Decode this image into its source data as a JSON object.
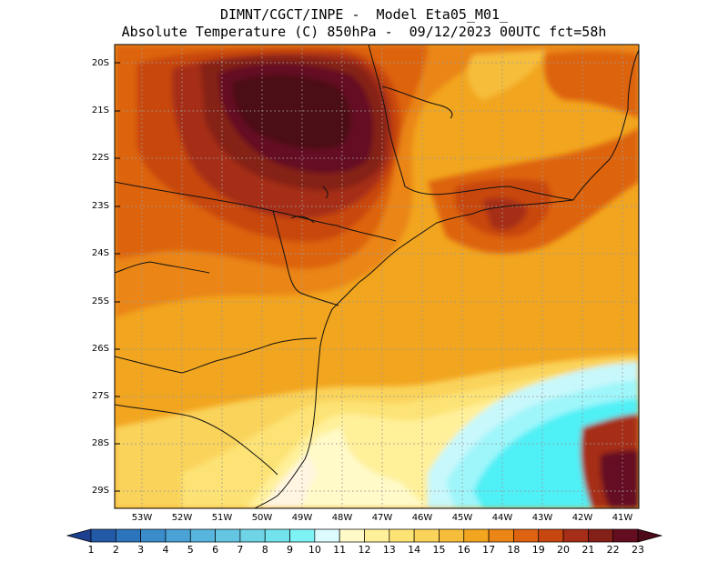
{
  "title": {
    "line1": "DIMNT/CGCT/INPE -  Model Eta05_M01_",
    "line2": "Absolute Temperature (C) 850hPa -  09/12/2023 00UTC fct=58h"
  },
  "map": {
    "lat_labels": [
      "20S",
      "21S",
      "22S",
      "23S",
      "24S",
      "25S",
      "26S",
      "27S",
      "28S",
      "29S"
    ],
    "lon_labels": [
      "53W",
      "52W",
      "51W",
      "50W",
      "49W",
      "48W",
      "47W",
      "46W",
      "45W",
      "44W",
      "43W",
      "42W",
      "41W"
    ],
    "lat_range": [
      19.7,
      29.4
    ],
    "lon_range": [
      53.8,
      40.7
    ],
    "gridlines": "dotted"
  },
  "colorbar": {
    "labels": [
      "1",
      "2",
      "3",
      "4",
      "5",
      "6",
      "7",
      "8",
      "9",
      "10",
      "11",
      "12",
      "13",
      "14",
      "15",
      "16",
      "17",
      "18",
      "19",
      "20",
      "21",
      "22",
      "23"
    ],
    "colors": [
      "#1c3f8f",
      "#235aa8",
      "#2c74bc",
      "#3a8ccb",
      "#4aa2d6",
      "#58b5dd",
      "#64c6e2",
      "#6ed4e6",
      "#72e3ec",
      "#7ff2f6",
      "#dcfbff",
      "#fffac8",
      "#fff09a",
      "#fde374",
      "#fad35a",
      "#f6bd3b",
      "#f2a51f",
      "#ea8516",
      "#dd6310",
      "#c84710",
      "#a62d17",
      "#852019",
      "#650d20",
      "#4c0918"
    ]
  },
  "colors": {
    "temp_11": "#fff5e0",
    "temp_12": "#fffac8",
    "temp_13": "#fff09a",
    "temp_14": "#fde374",
    "temp_15": "#fad35a",
    "temp_16": "#f6bd3b",
    "temp_17": "#f2a51f",
    "temp_18": "#ea8516",
    "temp_19": "#dd6310",
    "temp_20": "#c84710",
    "temp_21": "#a62d17",
    "temp_22": "#852019",
    "temp_23": "#650d20",
    "temp_24": "#4c0918",
    "cold_cyan": "#4ff0f6",
    "cold_light": "#9ef6fa",
    "cold_pale": "#c8f8fb"
  }
}
